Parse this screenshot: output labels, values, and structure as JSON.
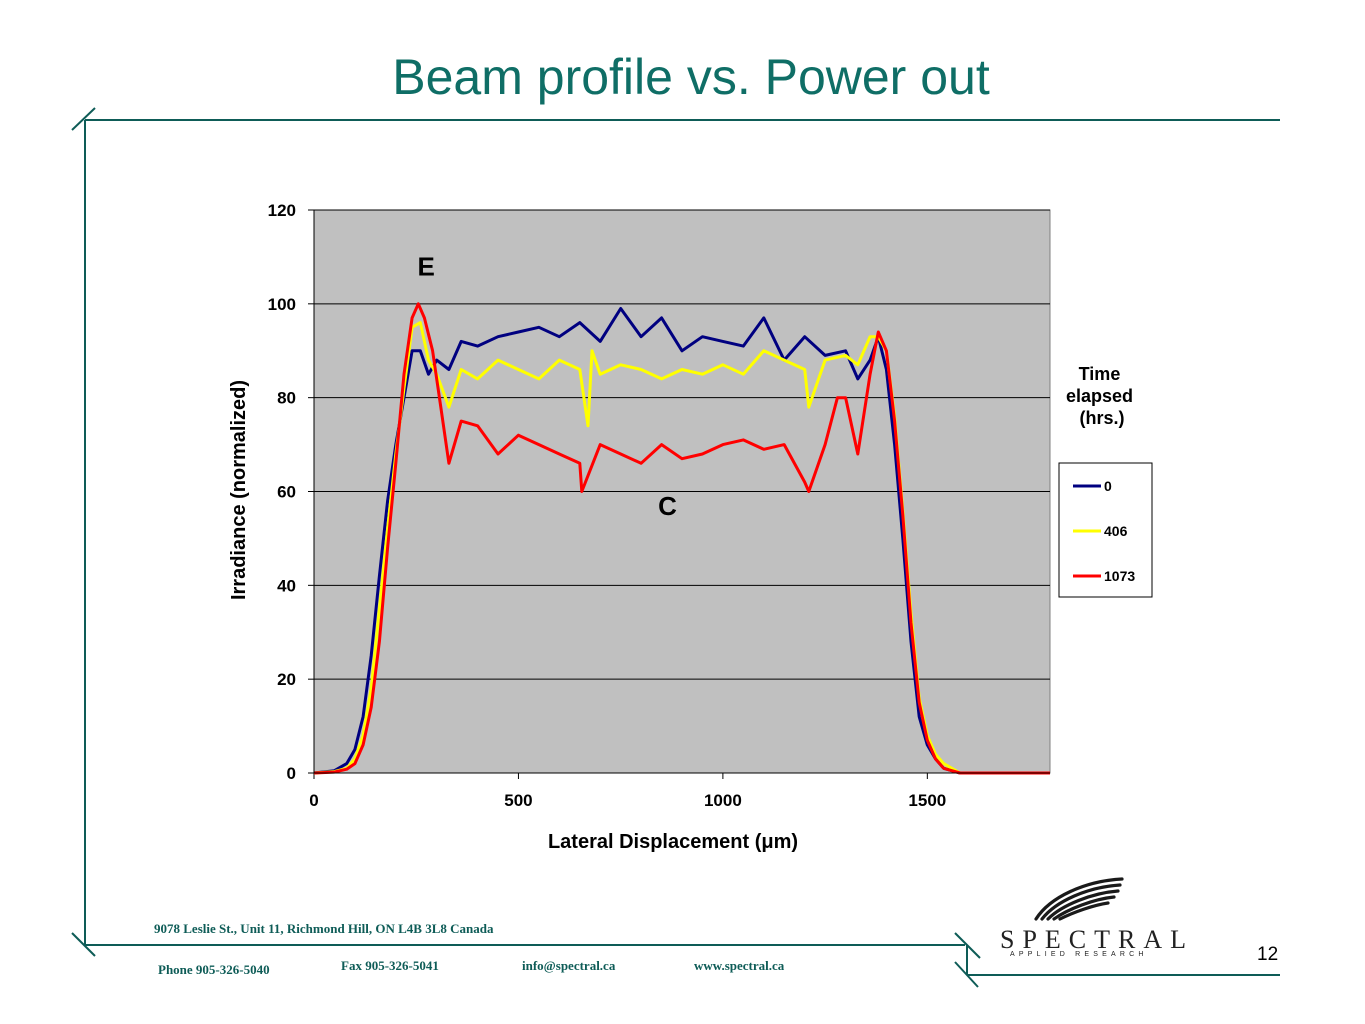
{
  "slide": {
    "title": "Beam profile vs. Power out",
    "page_number": "12"
  },
  "footer": {
    "address": "9078 Leslie St., Unit 11, Richmond Hill, ON L4B 3L8 Canada",
    "phone": "Phone 905-326-5040",
    "fax": "Fax 905-326-5041",
    "email": "info@spectral.ca",
    "website": "www.spectral.ca"
  },
  "logo": {
    "name": "SPECTRAL",
    "tagline": "APPLIED RESEARCH"
  },
  "colors": {
    "accent": "#0f6e66",
    "plot_background": "#c0c0c0"
  },
  "chart_data": {
    "type": "line",
    "xlabel": "Lateral Displacement (μm)",
    "ylabel": "Irradiance (normalized)",
    "xlim": [
      0,
      1800
    ],
    "ylim": [
      0,
      120
    ],
    "x_ticks": [
      0,
      500,
      1000,
      1500
    ],
    "y_ticks": [
      0,
      20,
      40,
      60,
      80,
      100,
      120
    ],
    "grid": "horizontal",
    "legend_title": "Time elapsed (hrs.)",
    "legend_position": "right",
    "annotations": [
      {
        "text": "E",
        "x": 250,
        "y": 106
      },
      {
        "text": "C",
        "x": 840,
        "y": 55
      }
    ],
    "series": [
      {
        "name": "0",
        "color": "#000080",
        "x": [
          0,
          50,
          80,
          100,
          120,
          140,
          160,
          180,
          200,
          220,
          240,
          260,
          280,
          300,
          330,
          360,
          400,
          450,
          500,
          550,
          600,
          650,
          700,
          750,
          800,
          850,
          900,
          950,
          1000,
          1050,
          1100,
          1150,
          1200,
          1250,
          1300,
          1330,
          1360,
          1380,
          1400,
          1420,
          1440,
          1460,
          1480,
          1500,
          1520,
          1540,
          1560,
          1580,
          1600,
          1700,
          1800
        ],
        "y": [
          0,
          0.5,
          2,
          5,
          12,
          25,
          42,
          58,
          70,
          80,
          90,
          90,
          85,
          88,
          86,
          92,
          91,
          93,
          94,
          95,
          93,
          96,
          92,
          99,
          93,
          97,
          90,
          93,
          92,
          91,
          97,
          88,
          93,
          89,
          90,
          84,
          88,
          93,
          86,
          70,
          50,
          28,
          12,
          6,
          3,
          1,
          0.5,
          0,
          0,
          0,
          0
        ]
      },
      {
        "name": "406",
        "color": "#ffff00",
        "x": [
          0,
          50,
          80,
          100,
          120,
          140,
          160,
          180,
          200,
          220,
          240,
          260,
          280,
          300,
          330,
          360,
          400,
          450,
          500,
          550,
          600,
          650,
          670,
          680,
          700,
          750,
          800,
          850,
          900,
          950,
          1000,
          1050,
          1100,
          1150,
          1200,
          1210,
          1250,
          1300,
          1330,
          1360,
          1380,
          1400,
          1420,
          1440,
          1460,
          1480,
          1500,
          1520,
          1540,
          1560,
          1580,
          1600,
          1700,
          1800
        ],
        "y": [
          0,
          0.3,
          1,
          3,
          8,
          18,
          35,
          52,
          68,
          82,
          95,
          96,
          88,
          85,
          78,
          86,
          84,
          88,
          86,
          84,
          88,
          86,
          74,
          90,
          85,
          87,
          86,
          84,
          86,
          85,
          87,
          85,
          90,
          88,
          86,
          78,
          88,
          89,
          87,
          93,
          93,
          90,
          76,
          56,
          34,
          16,
          8,
          4,
          2,
          1,
          0,
          0,
          0,
          0
        ]
      },
      {
        "name": "1073",
        "color": "#ff0000",
        "x": [
          0,
          50,
          80,
          100,
          120,
          140,
          160,
          180,
          200,
          220,
          240,
          255,
          270,
          290,
          310,
          330,
          360,
          400,
          450,
          500,
          550,
          600,
          650,
          655,
          700,
          750,
          800,
          850,
          900,
          950,
          1000,
          1050,
          1100,
          1150,
          1200,
          1210,
          1250,
          1280,
          1300,
          1330,
          1360,
          1380,
          1400,
          1420,
          1440,
          1460,
          1480,
          1500,
          1520,
          1540,
          1560,
          1580,
          1600,
          1700,
          1800
        ],
        "y": [
          0,
          0.2,
          0.8,
          2,
          6,
          14,
          28,
          48,
          66,
          85,
          97,
          100,
          97,
          90,
          78,
          66,
          75,
          74,
          68,
          72,
          70,
          68,
          66,
          60,
          70,
          68,
          66,
          70,
          67,
          68,
          70,
          71,
          69,
          70,
          62,
          60,
          70,
          80,
          80,
          68,
          85,
          94,
          90,
          75,
          55,
          32,
          15,
          7,
          3,
          1,
          0.5,
          0,
          0,
          0,
          0
        ]
      }
    ]
  }
}
